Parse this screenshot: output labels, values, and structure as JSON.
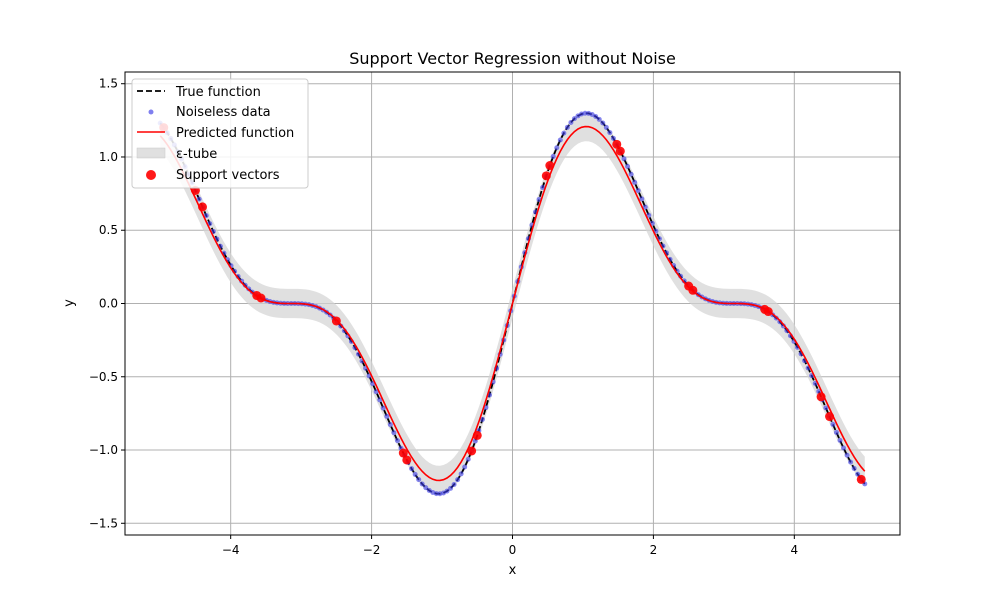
{
  "chart_data": {
    "type": "line",
    "title": "Support Vector Regression without Noise",
    "xlabel": "x",
    "ylabel": "y",
    "xlim": [
      -5.5,
      5.5
    ],
    "ylim": [
      -1.58,
      1.58
    ],
    "xticks": [
      -4,
      -2,
      0,
      2,
      4
    ],
    "yticks": [
      -1.5,
      -1.0,
      -0.5,
      0.0,
      0.5,
      1.0,
      1.5
    ],
    "xtick_labels": [
      "−4",
      "−2",
      "0",
      "2",
      "4"
    ],
    "ytick_labels": [
      "−1.5",
      "−1.0",
      "−0.5",
      "0.0",
      "0.5",
      "1.0",
      "1.5"
    ],
    "grid": true,
    "legend_position": "top-left",
    "legend": [
      {
        "label": "True function",
        "kind": "dashed-line",
        "color": "#000000"
      },
      {
        "label": "Noiseless data",
        "kind": "small-dot",
        "color": "#3b3be6"
      },
      {
        "label": "Predicted function",
        "kind": "line",
        "color": "#ff0000"
      },
      {
        "label": "ε-tube",
        "kind": "band",
        "color": "#d3d3d3"
      },
      {
        "label": "Support vectors",
        "kind": "big-dot",
        "color": "#ff0000"
      }
    ],
    "function": "sin(x) + 0.5*sin(2x)",
    "x_range": [
      -5,
      5
    ],
    "n_data_points": 200,
    "epsilon": 0.1,
    "predicted_scale": 0.93,
    "series": [
      {
        "name": "True function",
        "style": "dashed",
        "color": "#000000"
      },
      {
        "name": "Noiseless data",
        "style": "points",
        "color": "#3b3be6"
      },
      {
        "name": "Predicted function",
        "style": "solid",
        "color": "#ff0000"
      },
      {
        "name": "ε-tube",
        "style": "band",
        "color": "#d3d3d3"
      },
      {
        "name": "Support vectors",
        "style": "points",
        "color": "#ff0000"
      }
    ],
    "support_vector_x": [
      -4.95,
      -4.5,
      -4.4,
      -3.63,
      -3.57,
      -2.5,
      -1.55,
      -1.5,
      -0.58,
      -0.5,
      0.48,
      0.53,
      1.48,
      1.53,
      2.5,
      2.56,
      3.58,
      3.63,
      4.38,
      4.5,
      4.95
    ]
  }
}
